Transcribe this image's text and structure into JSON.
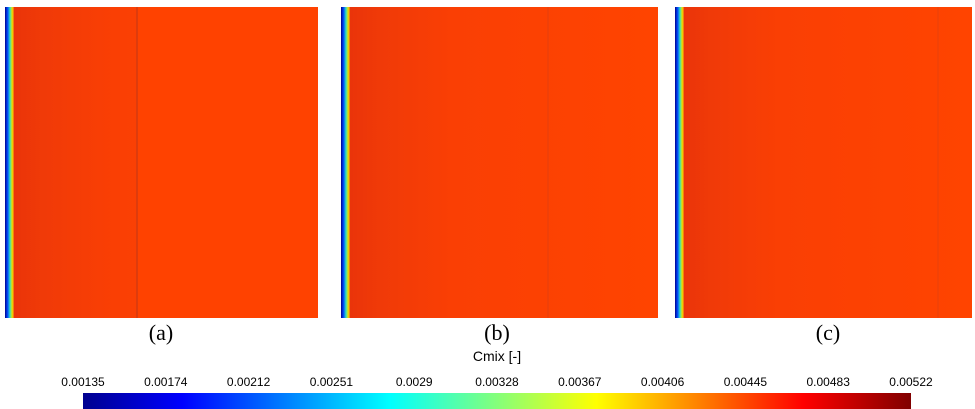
{
  "panels": [
    {
      "label": "(a)"
    },
    {
      "label": "(b)"
    },
    {
      "label": "(c)"
    }
  ],
  "colorbar": {
    "title": "Cmix [-]",
    "ticks": [
      "0.00135",
      "0.00174",
      "0.00212",
      "0.00251",
      "0.0029",
      "0.00328",
      "0.00367",
      "0.00406",
      "0.00445",
      "0.00483",
      "0.00522"
    ]
  }
}
